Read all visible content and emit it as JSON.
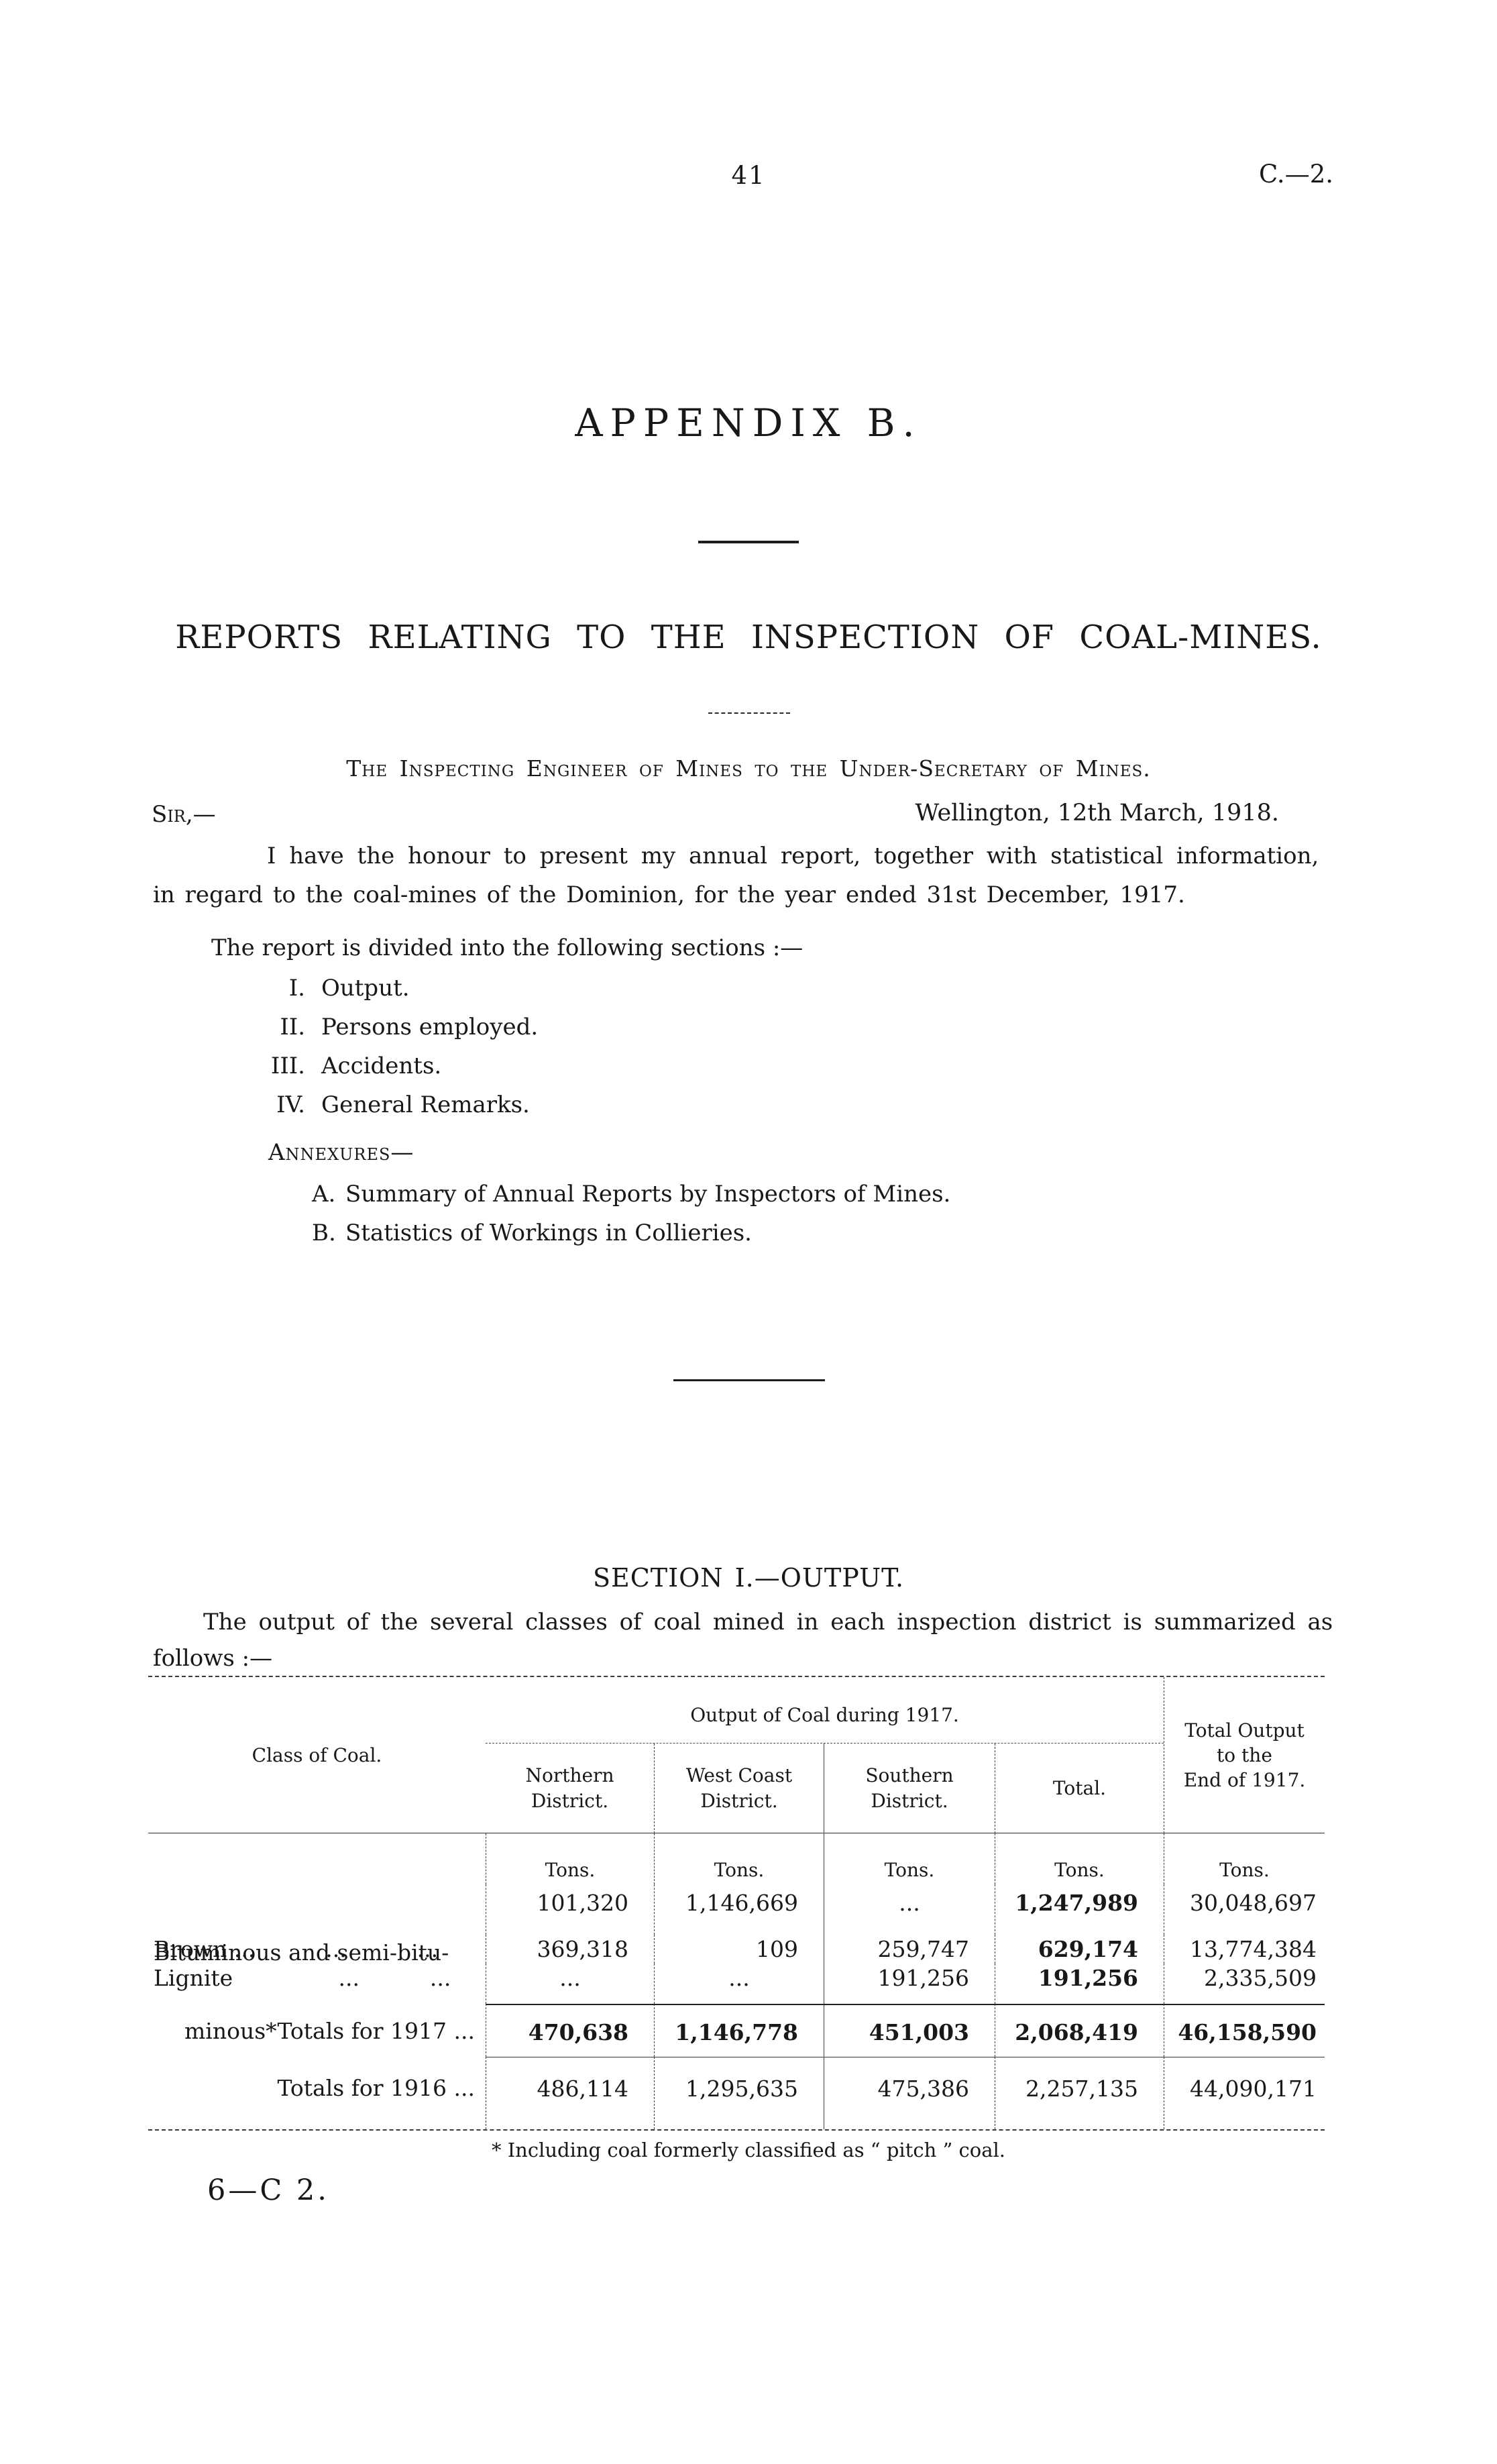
{
  "colors": {
    "ink": "#181818",
    "paper": "#ffffff"
  },
  "header": {
    "page_number": "41",
    "doc_ref": "C.—2."
  },
  "titles": {
    "appendix": "APPENDIX  B.",
    "reports_heading": "REPORTS RELATING TO THE INSPECTION OF COAL-MINES.",
    "salutation": "The Inspecting Engineer of Mines to the Under-Secretary of Mines."
  },
  "letter": {
    "sir": "Sir,—",
    "dateline": "Wellington, 12th March, 1918.",
    "line1": "I have the honour to present my annual report, together with statistical information,",
    "line2": "in regard to the coal-mines of the Dominion, for the year ended 31st December, 1917.",
    "sections_intro": "The report is divided into the following sections :—",
    "sections": [
      {
        "num": "I.",
        "label": "Output."
      },
      {
        "num": "II.",
        "label": "Persons employed."
      },
      {
        "num": "III.",
        "label": "Accidents."
      },
      {
        "num": "IV.",
        "label": "General Remarks."
      }
    ],
    "annexures_label": "Annexures—",
    "annexures": [
      {
        "num": "A.",
        "label": "Summary of Annual Reports by Inspectors of Mines."
      },
      {
        "num": "B.",
        "label": "Statistics of Workings in Collieries."
      }
    ]
  },
  "section1": {
    "heading": "SECTION I.—OUTPUT.",
    "intro_line1": "The output of the several classes of coal mined in each inspection district is summarized as",
    "intro_line2": "follows :—"
  },
  "table": {
    "class_col_header": "Class of Coal.",
    "group_header": "Output of Coal during 1917.",
    "total_output_header": "Total Output\nto the\nEnd of 1917.",
    "district_headers": {
      "northern": "Northern\nDistrict.",
      "west_coast": "West Coast\nDistrict.",
      "southern": "Southern\nDistrict.",
      "total": "Total."
    },
    "units_label": "Tons.",
    "rows": [
      {
        "label_line1": "Bituminous and semi-bitu-",
        "label_line2": "minous*",
        "northern": "101,320",
        "west_coast": "1,146,669",
        "southern": "...",
        "total": "1,247,989",
        "total_end": "30,048,697"
      },
      {
        "label": "Brown ...          ...          ...",
        "northern": "369,318",
        "west_coast": "109",
        "southern": "259,747",
        "total": "629,174",
        "total_end": "13,774,384"
      },
      {
        "label": "Lignite               ...          ...",
        "northern": "...",
        "west_coast": "...",
        "southern": "191,256",
        "total": "191,256",
        "total_end": "2,335,509"
      }
    ],
    "totals_1917": {
      "label": "Totals for 1917 ...",
      "northern": "470,638",
      "west_coast": "1,146,778",
      "southern": "451,003",
      "total": "2,068,419",
      "total_end": "46,158,590"
    },
    "totals_1916": {
      "label": "Totals for 1916 ...",
      "northern": "486,114",
      "west_coast": "1,295,635",
      "southern": "475,386",
      "total": "2,257,135",
      "total_end": "44,090,171"
    }
  },
  "footnote": "* Including coal formerly classified as “ pitch ” coal.",
  "footer_signature": "6—C 2."
}
